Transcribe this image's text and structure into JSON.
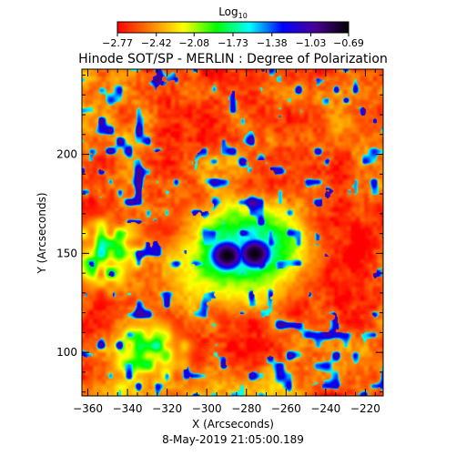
{
  "chart_data": {
    "type": "heatmap",
    "title": "Hinode SOT/SP - MERLIN : Degree of Polarization",
    "xlabel": "X (Arcseconds)",
    "ylabel": "Y (Arcseconds)",
    "subtitle": "8-May-2019 21:05:00.189",
    "xlim": [
      -363,
      -211
    ],
    "ylim": [
      78,
      243
    ],
    "x_ticks": [
      -360,
      -340,
      -320,
      -300,
      -280,
      -260,
      -240,
      -220
    ],
    "x_tick_labels": [
      "−360",
      "−340",
      "−320",
      "−300",
      "−280",
      "−260",
      "−240",
      "−220"
    ],
    "y_ticks": [
      100,
      150,
      200
    ],
    "y_tick_labels": [
      "100",
      "150",
      "200"
    ],
    "colorbar": {
      "label_base": "Log",
      "label_sub": "10",
      "min": -2.77,
      "max": -0.69,
      "ticks": [
        -2.77,
        -2.42,
        -2.08,
        -1.73,
        -1.38,
        -1.03,
        -0.69
      ],
      "tick_labels": [
        "−2.77",
        "−2.42",
        "−2.08",
        "−1.73",
        "−1.38",
        "−1.03",
        "−0.69"
      ],
      "colormap": [
        "#ff0000",
        "#ff8000",
        "#ffff00",
        "#00ff00",
        "#00ffff",
        "#0000ff",
        "#4b0096",
        "#000000"
      ]
    },
    "features": [
      {
        "name": "sunspot-umbra-west",
        "x": -290,
        "y": 149,
        "value": -0.7
      },
      {
        "name": "sunspot-umbra-east",
        "x": -276,
        "y": 150,
        "value": -0.69
      },
      {
        "name": "plage-network-west",
        "x": -350,
        "y": 150,
        "value": -1.5
      },
      {
        "name": "plage-network-southwest",
        "x": -330,
        "y": 100,
        "value": -1.6
      }
    ]
  }
}
